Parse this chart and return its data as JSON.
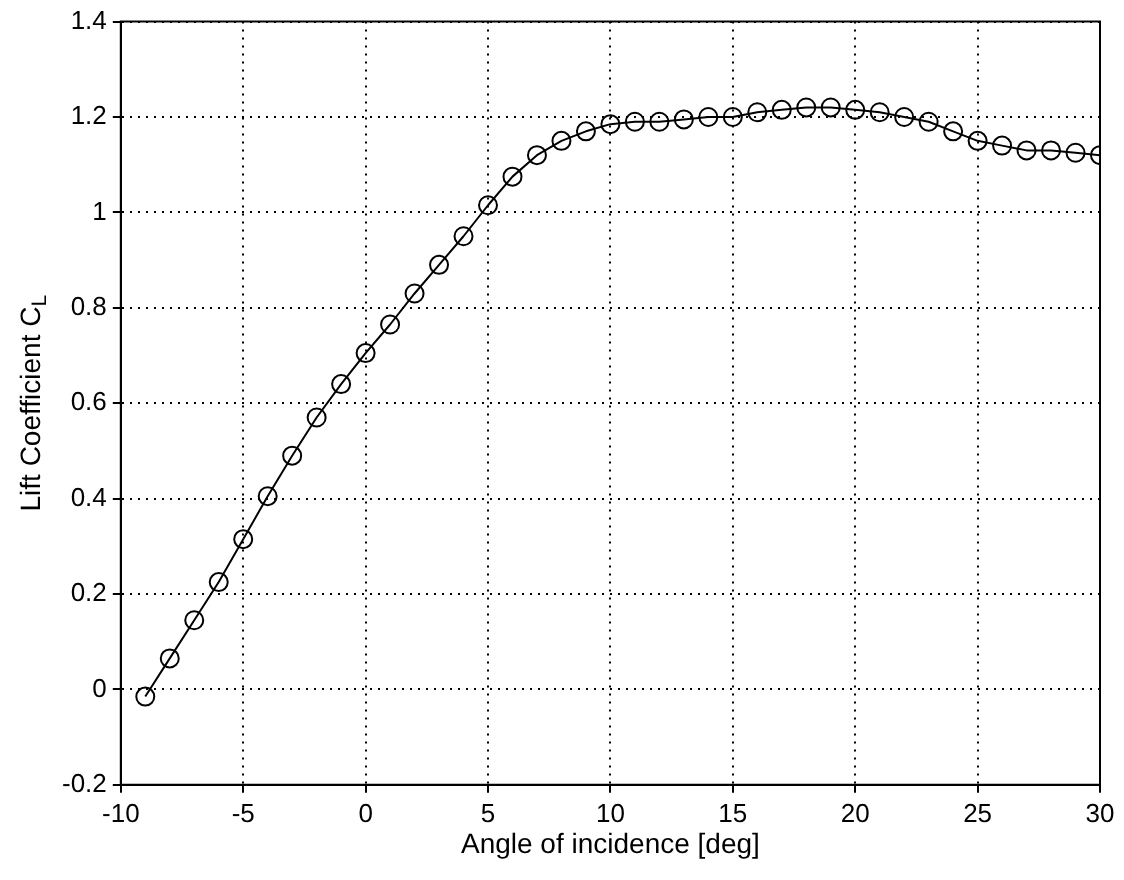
{
  "chart_data": {
    "type": "line",
    "xlabel": "Angle of incidence [deg]",
    "ylabel": "Lift Coefficient C$_{L}$",
    "x": [
      -9,
      -8,
      -7,
      -6,
      -5,
      -4,
      -3,
      -2,
      -1,
      0,
      1,
      2,
      3,
      4,
      5,
      6,
      7,
      8,
      9,
      10,
      11,
      12,
      13,
      14,
      15,
      16,
      17,
      18,
      19,
      20,
      21,
      22,
      23,
      24,
      25,
      26,
      27,
      28,
      29,
      30
    ],
    "series": [
      {
        "color": "#000000",
        "values": [
          -0.015,
          0.065,
          0.145,
          0.225,
          0.315,
          0.405,
          0.49,
          0.57,
          0.64,
          0.705,
          0.765,
          0.83,
          0.89,
          0.95,
          1.015,
          1.075,
          1.12,
          1.15,
          1.17,
          1.185,
          1.19,
          1.19,
          1.195,
          1.2,
          1.2,
          1.21,
          1.215,
          1.22,
          1.22,
          1.215,
          1.21,
          1.2,
          1.19,
          1.17,
          1.15,
          1.14,
          1.13,
          1.13,
          1.125,
          1.12
        ]
      }
    ],
    "xlim": [
      -10,
      30
    ],
    "xticks": [
      -10,
      -5,
      0,
      5,
      10,
      15,
      20,
      25,
      30
    ],
    "ylim": [
      -0.2,
      1.4
    ],
    "yticks": [
      -0.2,
      0,
      0.2,
      0.4,
      0.6,
      0.8,
      1,
      1.2,
      1.4
    ],
    "grid": true,
    "marker": "circle",
    "line_style": "solid",
    "legend": false
  }
}
